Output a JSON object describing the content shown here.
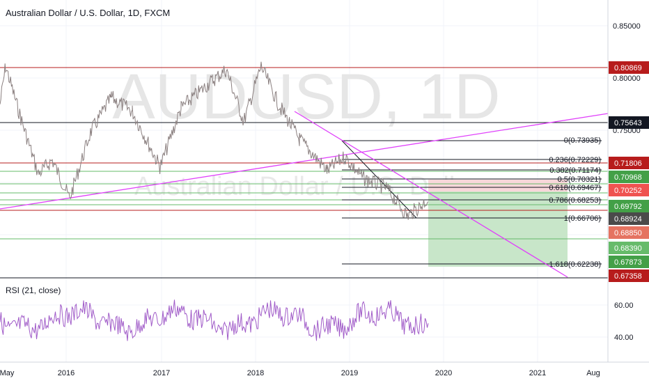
{
  "chart": {
    "title": "Australian Dollar / U.S. Dollar, 1D, FXCM",
    "watermark_symbol": "AUDUSD, 1D",
    "watermark_name": "Australian Dollar / U.S. Dollar",
    "price_scale": {
      "ticks": [
        "0.85000",
        "0.80000",
        "0.75000"
      ],
      "labels": [
        {
          "text": "0.80869",
          "bg": "#b71c1c"
        },
        {
          "text": "0.75643",
          "bg": "#131722"
        },
        {
          "text": "0.71806",
          "bg": "#b71c1c"
        },
        {
          "text": "0.70968",
          "bg": "#43a047"
        },
        {
          "text": "0.70252",
          "bg": "#ef5350"
        },
        {
          "text": "0.69792",
          "bg": "#43a047"
        },
        {
          "text": "0.68924",
          "bg": "#4a4a4a"
        },
        {
          "text": "0.68850",
          "bg": "#e57361"
        },
        {
          "text": "0.68390",
          "bg": "#66bb6a"
        },
        {
          "text": "0.67873",
          "bg": "#43a047"
        },
        {
          "text": "0.67358",
          "bg": "#b71c1c"
        }
      ]
    },
    "fibonacci": [
      {
        "label": "0(0.73935)"
      },
      {
        "label": "0.236(0.72229)"
      },
      {
        "label": "0.382(0.71174)"
      },
      {
        "label": "0.5(0.70321)"
      },
      {
        "label": "0.618(0.69467)"
      },
      {
        "label": "0.786(0.68253)"
      },
      {
        "label": "1(0.66706)"
      },
      {
        "label": "1.618(0.62238)"
      }
    ]
  },
  "rsi": {
    "title": "RSI (21, close)",
    "ticks": [
      "60.00",
      "40.00"
    ]
  },
  "time_axis": {
    "labels": [
      "May",
      "2016",
      "2017",
      "2018",
      "2019",
      "2020",
      "2021",
      "Aug"
    ]
  },
  "colors": {
    "horizontal_red": "#b71c1c",
    "horizontal_green": "#66bb6a",
    "trendline": "#e040fb",
    "rsi_line": "#a05bc8",
    "price_line": "#8a7f7f",
    "long_target_fill": "#c8e6c9",
    "long_stop_fill": "#f8d7da"
  }
}
